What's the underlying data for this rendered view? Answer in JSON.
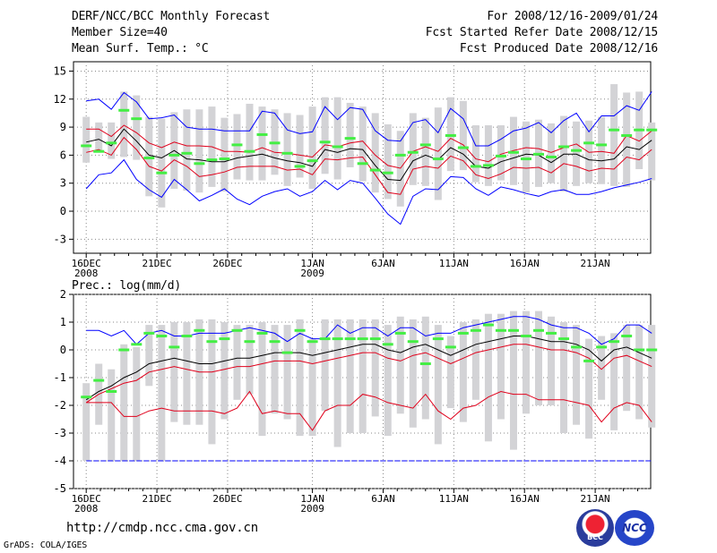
{
  "header": {
    "title": "DERF/NCC/BCC Monthly Forecast",
    "member_size": "Member Size=40",
    "variable": "Mean Surf. Temp.: °C",
    "period": "For 2008/12/16-2009/01/24",
    "started": "Fcst Started Refer Date 2008/12/15",
    "produced": "Fcst Produced Date 2008/12/16"
  },
  "footer": {
    "url": "http://cmdp.ncc.cma.gov.cn",
    "grads": "GrADS: COLA/IGES",
    "logo_bcc": "BCC",
    "logo_ncc": "NCC"
  },
  "chart_data": [
    {
      "type": "line",
      "title": "Mean Surf. Temp.: °C",
      "ylim": [
        -4.5,
        16
      ],
      "yticks": [
        15,
        12,
        9,
        6,
        3,
        0,
        -3
      ],
      "xlim": [
        0,
        40
      ],
      "xtick_days": [
        0,
        5,
        10,
        16,
        21,
        26,
        31,
        36
      ],
      "xtick_labels": [
        "16DEC",
        "21DEC",
        "26DEC",
        "1JAN",
        "6JAN",
        "11JAN",
        "16JAN",
        "21JAN"
      ],
      "xtick_sublabels": [
        "2008",
        "",
        "",
        "2009",
        "",
        "",
        "",
        ""
      ],
      "series": [
        {
          "name": "max",
          "color": "#0000ff",
          "values": [
            11.8,
            12,
            10.9,
            12.7,
            11.7,
            9.9,
            10,
            10.3,
            9,
            8.8,
            8.8,
            8.6,
            8.6,
            8.6,
            10.7,
            10.5,
            8.7,
            8.3,
            8.5,
            11.2,
            9.8,
            11.1,
            10.9,
            8.6,
            7.6,
            7.5,
            9.5,
            9.8,
            8.4,
            11,
            9.9,
            7,
            7,
            7.7,
            8.6,
            8.9,
            9.5,
            8.4,
            9.7,
            10.5,
            8.5,
            10.2,
            10.2,
            11.3,
            10.8,
            12.8
          ]
        },
        {
          "name": "upper",
          "color": "#e0001b",
          "values": [
            8.8,
            8.8,
            8,
            9.2,
            8.4,
            7.3,
            6.8,
            7.4,
            7,
            7,
            6.9,
            6.4,
            6.4,
            6.3,
            6.8,
            6.3,
            6.2,
            6,
            5.8,
            7.1,
            6.9,
            7.3,
            7.5,
            6,
            4.9,
            4.6,
            6.4,
            6.9,
            6.4,
            7.8,
            7.1,
            5.6,
            5.3,
            6.1,
            6.5,
            6.8,
            6.7,
            6.3,
            6.8,
            7.2,
            6.3,
            6.4,
            6.2,
            8.1,
            7.5,
            8.6
          ]
        },
        {
          "name": "mean",
          "color": "#000000",
          "values": [
            7.4,
            7.7,
            7,
            8.8,
            7.5,
            6,
            5.7,
            6.5,
            5.6,
            5.5,
            5.3,
            5.3,
            5.7,
            5.9,
            6.1,
            5.7,
            5.4,
            5.2,
            4.8,
            6.6,
            6.3,
            6.7,
            6.6,
            4.9,
            3.4,
            3.3,
            5.4,
            6,
            5.5,
            6.8,
            6.1,
            4.8,
            4.6,
            5.3,
            5.7,
            6.1,
            6,
            5.2,
            6.1,
            6.1,
            5.5,
            5.4,
            5.6,
            6.9,
            6.6,
            7.6
          ]
        },
        {
          "name": "lower",
          "color": "#e0001b",
          "values": [
            6.3,
            6.6,
            6,
            7.9,
            6.6,
            4.8,
            4.3,
            5.5,
            4.8,
            3.7,
            3.9,
            4.2,
            4.7,
            4.8,
            4.8,
            4.8,
            4.4,
            4.5,
            3.9,
            5.6,
            5.5,
            5.7,
            5.8,
            3.9,
            2,
            1.8,
            4.5,
            4.8,
            4.6,
            5.9,
            5.4,
            3.9,
            3.5,
            4,
            4.7,
            4.6,
            4.7,
            4.1,
            5.1,
            4.8,
            4.3,
            4.6,
            4.5,
            5.8,
            5.5,
            6.6
          ]
        },
        {
          "name": "min",
          "color": "#0000ff",
          "values": [
            2.4,
            3.9,
            4.1,
            5.5,
            3.4,
            2.3,
            1.5,
            3.4,
            2.3,
            1.1,
            1.7,
            2.4,
            1.3,
            0.7,
            1.6,
            2.1,
            2.4,
            1.6,
            2.1,
            3.3,
            2.3,
            3.3,
            3,
            1.4,
            -0.3,
            -1.4,
            1.6,
            2.4,
            2.3,
            3.7,
            3.6,
            2.4,
            1.7,
            2.6,
            2.3,
            1.9,
            1.6,
            2.1,
            2.3,
            1.8,
            1.8,
            2.1,
            2.5,
            2.8,
            3.1,
            3.5
          ]
        },
        {
          "name": "control",
          "color": "#44ee44",
          "values": [
            7,
            6.4,
            7.3,
            10.8,
            9.9,
            5.7,
            4.1,
            6,
            6.2,
            5.1,
            5.5,
            5.6,
            7.1,
            6.4,
            8.2,
            7.3,
            6.2,
            4.8,
            5.4,
            7.4,
            6.9,
            7.8,
            5.1,
            4.4,
            4.1,
            6,
            6.3,
            7.1,
            5.6,
            8.1,
            6.8,
            4.8,
            4.9,
            5.9,
            6.3,
            5.6,
            6.1,
            5.8,
            6.9,
            6.5,
            7.3,
            7.1,
            8.7,
            8.1,
            8.7,
            8.7
          ]
        },
        {
          "name": "spread",
          "color": "#d3d3d6",
          "values": [
            [
              5.2,
              10.1
            ],
            [
              6.4,
              9.5
            ],
            [
              5.6,
              9.5
            ],
            [
              5.8,
              12.8
            ],
            [
              5.5,
              12.4
            ],
            [
              1.6,
              10.1
            ],
            [
              0.4,
              9.9
            ],
            [
              2.4,
              10.6
            ],
            [
              2.2,
              10.9
            ],
            [
              2,
              10.9
            ],
            [
              2.6,
              11.2
            ],
            [
              2.1,
              10
            ],
            [
              3.4,
              10.4
            ],
            [
              3.3,
              11.5
            ],
            [
              3.3,
              11.2
            ],
            [
              3.9,
              10.9
            ],
            [
              2.7,
              10.5
            ],
            [
              3.6,
              10.3
            ],
            [
              2.4,
              11.2
            ],
            [
              4,
              12.2
            ],
            [
              3.4,
              12.2
            ],
            [
              4.7,
              11.6
            ],
            [
              3.2,
              11.2
            ],
            [
              2,
              10.5
            ],
            [
              1.3,
              9.3
            ],
            [
              0.5,
              8.6
            ],
            [
              2.8,
              10.5
            ],
            [
              2.7,
              10
            ],
            [
              1.2,
              11.1
            ],
            [
              4.3,
              12.2
            ],
            [
              4.4,
              11.8
            ],
            [
              3.1,
              9.2
            ],
            [
              2.7,
              9.2
            ],
            [
              3.3,
              9.2
            ],
            [
              2.8,
              10.1
            ],
            [
              2,
              9.6
            ],
            [
              2.6,
              9.8
            ],
            [
              3,
              9.4
            ],
            [
              2.1,
              10.2
            ],
            [
              2.7,
              9.6
            ],
            [
              3,
              9.7
            ],
            [
              2.9,
              10.1
            ],
            [
              2.7,
              13.6
            ],
            [
              2.6,
              12.7
            ],
            [
              4.5,
              12.8
            ],
            [
              3.3,
              9.5
            ]
          ]
        }
      ]
    },
    {
      "type": "line",
      "title": "Prec.: log(mm/d)",
      "ylim": [
        -5,
        2
      ],
      "yticks": [
        2,
        1,
        0,
        -1,
        -2,
        -3,
        -4,
        -5
      ],
      "xlim": [
        0,
        40
      ],
      "xtick_days": [
        0,
        5,
        10,
        16,
        21,
        26,
        31,
        36
      ],
      "xtick_labels": [
        "16DEC",
        "21DEC",
        "26DEC",
        "1JAN",
        "6JAN",
        "11JAN",
        "16JAN",
        "21JAN"
      ],
      "xtick_sublabels": [
        "2008",
        "",
        "",
        "2009",
        "",
        "",
        "",
        ""
      ],
      "series": [
        {
          "name": "max",
          "color": "#0000ff",
          "values": [
            0.7,
            0.7,
            0.5,
            0.7,
            0.2,
            0.6,
            0.7,
            0.5,
            0.5,
            0.6,
            0.6,
            0.6,
            0.7,
            0.8,
            0.7,
            0.6,
            0.3,
            0.6,
            0.4,
            0.4,
            0.9,
            0.6,
            0.8,
            0.8,
            0.5,
            0.8,
            0.8,
            0.5,
            0.6,
            0.6,
            0.8,
            0.9,
            1,
            1.1,
            1.2,
            1.2,
            1.1,
            0.9,
            0.8,
            0.8,
            0.6,
            0.2,
            0.4,
            0.9,
            0.9,
            0.6
          ]
        },
        {
          "name": "upper",
          "color": "#e0001b",
          "values": [
            -1.9,
            -1.6,
            -1.4,
            -1.2,
            -1.1,
            -0.8,
            -0.7,
            -0.6,
            -0.7,
            -0.8,
            -0.8,
            -0.7,
            -0.6,
            -0.6,
            -0.5,
            -0.4,
            -0.4,
            -0.4,
            -0.5,
            -0.4,
            -0.3,
            -0.2,
            -0.1,
            -0.1,
            -0.3,
            -0.4,
            -0.2,
            -0.1,
            -0.3,
            -0.5,
            -0.3,
            -0.1,
            0,
            0.1,
            0.2,
            0.2,
            0.1,
            0,
            0,
            -0.1,
            -0.3,
            -0.7,
            -0.3,
            -0.2,
            -0.4,
            -0.6
          ]
        },
        {
          "name": "mean",
          "color": "#000000",
          "values": [
            -1.8,
            -1.5,
            -1.3,
            -1,
            -0.8,
            -0.5,
            -0.4,
            -0.3,
            -0.4,
            -0.5,
            -0.5,
            -0.4,
            -0.3,
            -0.3,
            -0.2,
            -0.1,
            -0.1,
            -0.1,
            -0.2,
            -0.1,
            0,
            0.1,
            0.2,
            0.2,
            0,
            -0.1,
            0.1,
            0.2,
            0,
            -0.2,
            0,
            0.2,
            0.3,
            0.4,
            0.5,
            0.5,
            0.4,
            0.3,
            0.3,
            0.2,
            0,
            -0.4,
            0,
            0.1,
            -0.1,
            -0.3
          ]
        },
        {
          "name": "lower",
          "color": "#e0001b",
          "values": [
            -1.9,
            -1.9,
            -1.9,
            -2.4,
            -2.4,
            -2.2,
            -2.1,
            -2.2,
            -2.2,
            -2.2,
            -2.2,
            -2.3,
            -2.1,
            -1.5,
            -2.3,
            -2.2,
            -2.3,
            -2.3,
            -2.9,
            -2.2,
            -2,
            -2,
            -1.6,
            -1.7,
            -1.9,
            -2,
            -2.1,
            -1.6,
            -2.2,
            -2.5,
            -2.1,
            -2,
            -1.7,
            -1.5,
            -1.6,
            -1.6,
            -1.8,
            -1.8,
            -1.8,
            -1.9,
            -2,
            -2.6,
            -2.1,
            -1.9,
            -2,
            -2.6
          ]
        },
        {
          "name": "min",
          "color": "#0000ff",
          "values": [
            -4,
            -4,
            -4,
            -4,
            -4,
            -4,
            -4,
            -4,
            -4,
            -4,
            -4,
            -4,
            -4,
            -4,
            -4,
            -4,
            -4,
            -4,
            -4,
            -4,
            -4,
            -4,
            -4,
            -4,
            -4,
            -4,
            -4,
            -4,
            -4,
            -4,
            -4,
            -4,
            -4,
            -4,
            -4,
            -4,
            -4,
            -4,
            -4,
            -4,
            -4,
            -4,
            -4,
            -4,
            -4,
            -4
          ]
        },
        {
          "name": "control",
          "color": "#44ee44",
          "values": [
            -1.7,
            -1.1,
            -1.5,
            0,
            0.2,
            0.6,
            0.5,
            0.1,
            0.5,
            0.7,
            0.3,
            0.4,
            0.7,
            0.3,
            0.6,
            0.3,
            -0.1,
            0.7,
            0.3,
            0.4,
            0.4,
            0.4,
            0.4,
            0.4,
            0.2,
            0.6,
            0.3,
            -0.5,
            0.4,
            0.1,
            0.6,
            0.7,
            0.9,
            0.7,
            0.7,
            0.5,
            0.7,
            0.6,
            0.4,
            0.1,
            -0.4,
            0.1,
            0.3,
            0.5,
            0,
            0
          ]
        },
        {
          "name": "spread",
          "color": "#d3d3d6",
          "values": [
            [
              -4,
              -1.2
            ],
            [
              -2.7,
              -0.5
            ],
            [
              -4,
              -0.7
            ],
            [
              -4,
              0.2
            ],
            [
              -4,
              0.1
            ],
            [
              -1.3,
              0.9
            ],
            [
              -4,
              0.9
            ],
            [
              -2.6,
              1
            ],
            [
              -2.7,
              1
            ],
            [
              -2.7,
              1.1
            ],
            [
              -3.4,
              1.1
            ],
            [
              -2.5,
              1
            ],
            [
              -1.8,
              0.9
            ],
            [
              -1.6,
              0.9
            ],
            [
              -3.1,
              1
            ],
            [
              -2.3,
              0.9
            ],
            [
              -2.5,
              0.9
            ],
            [
              -3.1,
              1.1
            ],
            [
              -3.1,
              0.4
            ],
            [
              -2.2,
              1.1
            ],
            [
              -3.5,
              1.1
            ],
            [
              -3,
              1.1
            ],
            [
              -3,
              1.1
            ],
            [
              -2.4,
              1.1
            ],
            [
              -3.1,
              0.9
            ],
            [
              -2.3,
              1.2
            ],
            [
              -2.8,
              1.1
            ],
            [
              -2.5,
              1.2
            ],
            [
              -3.4,
              0.9
            ],
            [
              -2.1,
              0.5
            ],
            [
              -2.6,
              1
            ],
            [
              -1.8,
              1.1
            ],
            [
              -3.3,
              1.3
            ],
            [
              -2.5,
              1.3
            ],
            [
              -3.6,
              1.4
            ],
            [
              -2.3,
              1.4
            ],
            [
              -2,
              1.4
            ],
            [
              -2,
              1.2
            ],
            [
              -3,
              1
            ],
            [
              -2.7,
              0.9
            ],
            [
              -3.2,
              0.4
            ],
            [
              -1.8,
              0.5
            ],
            [
              -2.9,
              0.6
            ],
            [
              -2.2,
              0.9
            ],
            [
              -2.5,
              0.9
            ],
            [
              -2.8,
              0.9
            ]
          ]
        }
      ]
    }
  ]
}
